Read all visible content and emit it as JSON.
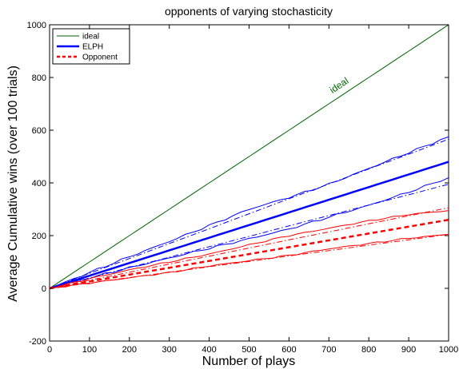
{
  "chart_data": {
    "type": "line",
    "title": "opponents of varying stochasticity",
    "xlabel": "Number of plays",
    "ylabel": "Average Cumulative wins (over 100 trials)",
    "xlim": [
      0,
      1000
    ],
    "ylim": [
      -200,
      1000
    ],
    "xticks": [
      0,
      100,
      200,
      300,
      400,
      500,
      600,
      700,
      800,
      900,
      1000
    ],
    "yticks": [
      -200,
      0,
      200,
      400,
      600,
      800,
      1000
    ],
    "grid": false,
    "legend_position": "top-left",
    "legend": [
      {
        "label": "ideal",
        "color": "#006400",
        "style": "solid",
        "width": 1
      },
      {
        "label": "ELPH",
        "color": "#0000ff",
        "style": "solid",
        "width": 2.5
      },
      {
        "label": "Opponent",
        "color": "#ff0000",
        "style": "dashed",
        "width": 2.5
      }
    ],
    "annotations": [
      {
        "text": "ideal",
        "x": 730,
        "y": 760,
        "color": "#006400"
      }
    ],
    "x": [
      0,
      100,
      200,
      300,
      400,
      500,
      600,
      700,
      800,
      900,
      1000
    ],
    "series": [
      {
        "name": "ideal",
        "color": "#006400",
        "style": "solid",
        "width": 1,
        "values": [
          0,
          100,
          200,
          300,
          400,
          500,
          600,
          700,
          800,
          900,
          1000
        ]
      },
      {
        "name": "ELPH",
        "color": "#0000ff",
        "style": "solid",
        "width": 2.5,
        "values": [
          0,
          48,
          96,
          144,
          192,
          240,
          288,
          336,
          384,
          432,
          480
        ]
      },
      {
        "name": "",
        "color": "#0000ff",
        "style": "solid",
        "width": 1,
        "jitter": 4,
        "values": [
          0,
          60,
          120,
          178,
          238,
          300,
          345,
          395,
          455,
          515,
          575
        ]
      },
      {
        "name": "",
        "color": "#0000ff",
        "style": "dashdot",
        "width": 1,
        "values": [
          0,
          57,
          113,
          170,
          226,
          283,
          340,
          396,
          453,
          509,
          566
        ]
      },
      {
        "name": "",
        "color": "#0000ff",
        "style": "solid",
        "width": 1,
        "jitter": 4,
        "values": [
          0,
          40,
          78,
          115,
          152,
          188,
          225,
          270,
          315,
          365,
          420
        ]
      },
      {
        "name": "",
        "color": "#0000ff",
        "style": "dashdot",
        "width": 1,
        "values": [
          0,
          39,
          79,
          118,
          158,
          197,
          237,
          276,
          316,
          355,
          395
        ]
      },
      {
        "name": "Opponent",
        "color": "#ff0000",
        "style": "dashed",
        "width": 2.5,
        "values": [
          0,
          26,
          52,
          78,
          104,
          130,
          156,
          182,
          208,
          234,
          260
        ]
      },
      {
        "name": "",
        "color": "#ff0000",
        "style": "solid",
        "width": 1,
        "jitter": 3,
        "values": [
          0,
          37,
          70,
          100,
          130,
          165,
          200,
          228,
          256,
          280,
          295
        ]
      },
      {
        "name": "",
        "color": "#ff0000",
        "style": "dashdot",
        "width": 1,
        "values": [
          0,
          31,
          61,
          92,
          122,
          153,
          184,
          214,
          245,
          275,
          306
        ]
      },
      {
        "name": "",
        "color": "#ff0000",
        "style": "solid",
        "width": 1,
        "jitter": 3,
        "values": [
          0,
          20,
          40,
          60,
          85,
          105,
          125,
          150,
          170,
          190,
          205
        ]
      },
      {
        "name": "",
        "color": "#ff0000",
        "style": "dashdot",
        "width": 1,
        "values": [
          0,
          20,
          41,
          61,
          82,
          102,
          123,
          143,
          164,
          184,
          205
        ]
      }
    ]
  }
}
